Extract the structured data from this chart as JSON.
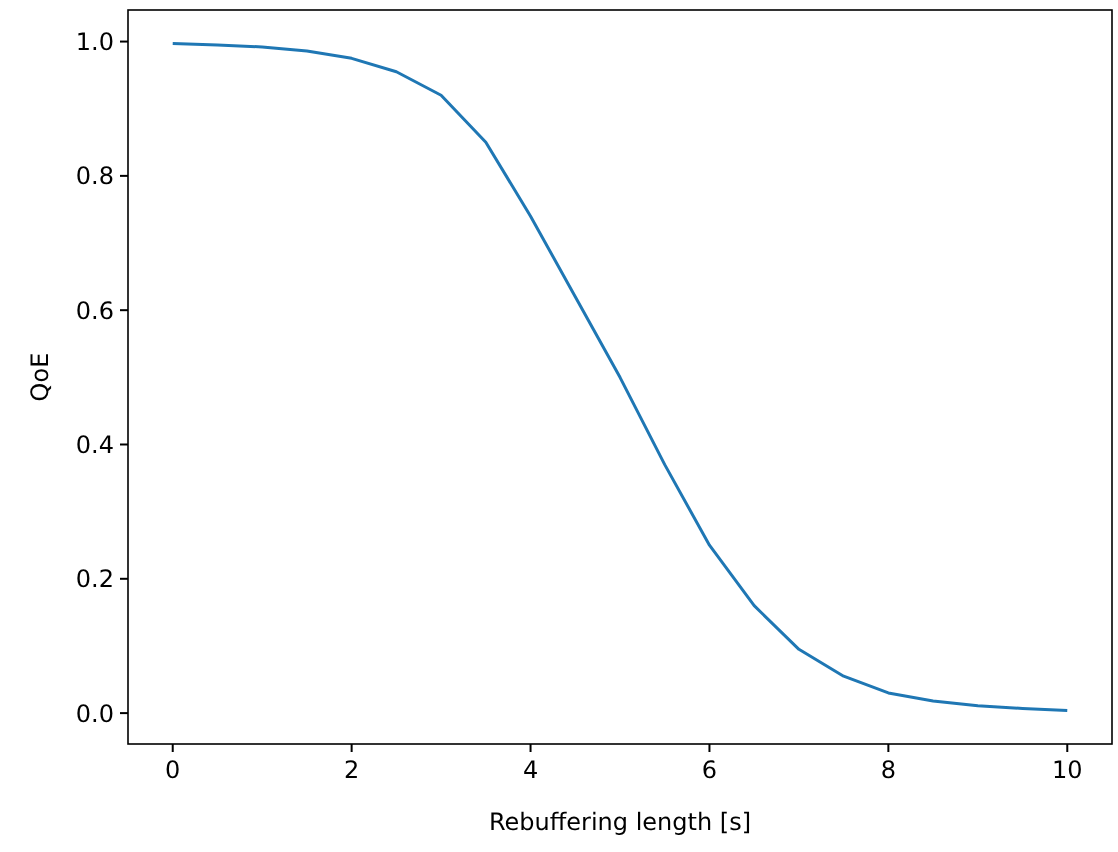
{
  "chart_data": {
    "type": "line",
    "xlabel": "Rebuffering length [s]",
    "ylabel": "QoE",
    "x": [
      0,
      0.5,
      1,
      1.5,
      2,
      2.5,
      3,
      3.5,
      4,
      4.5,
      5,
      5.5,
      6,
      6.5,
      7,
      7.5,
      8,
      8.5,
      9,
      9.5,
      10
    ],
    "series": [
      {
        "color": "#1f77b4",
        "values": [
          0.997,
          0.995,
          0.992,
          0.986,
          0.975,
          0.955,
          0.92,
          0.85,
          0.74,
          0.62,
          0.5,
          0.37,
          0.25,
          0.16,
          0.095,
          0.055,
          0.03,
          0.018,
          0.011,
          0.007,
          0.004
        ]
      }
    ],
    "xlim": [
      -0.5,
      10.5
    ],
    "ylim": [
      -0.046,
      1.047
    ],
    "xticks": [
      0,
      2,
      4,
      6,
      8,
      10
    ],
    "yticks": [
      {
        "value": 0,
        "label": "0.0"
      },
      {
        "value": 0.2,
        "label": "0.2"
      },
      {
        "value": 0.4,
        "label": "0.4"
      },
      {
        "value": 0.6,
        "label": "0.6"
      },
      {
        "value": 0.8,
        "label": "0.8"
      },
      {
        "value": 1,
        "label": "1.0"
      }
    ],
    "grid": false,
    "marker": "none",
    "line_style": "solid"
  }
}
